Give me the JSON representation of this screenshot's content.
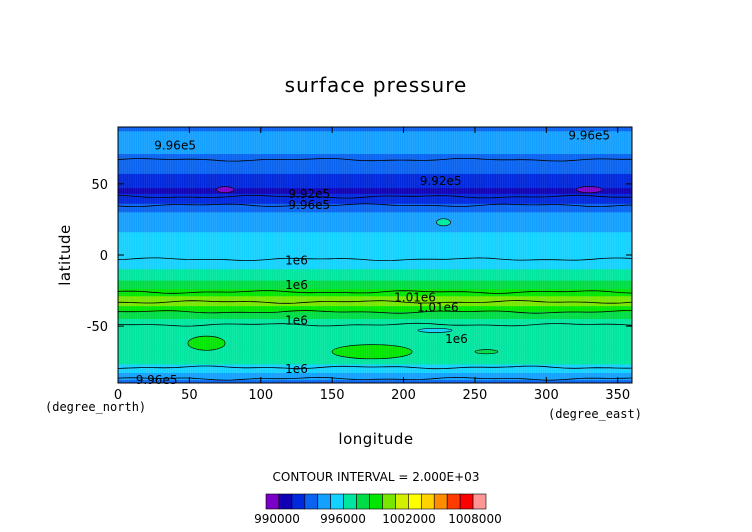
{
  "chart_data": {
    "type": "heatmap",
    "title": "surface pressure",
    "xlabel": "longitude",
    "ylabel": "latitude",
    "x_unit": "(degree_east)",
    "y_unit": "(degree_north)",
    "xlim": [
      0,
      360
    ],
    "ylim": [
      -90,
      90
    ],
    "x_ticks": [
      0,
      50,
      100,
      150,
      200,
      250,
      300,
      350
    ],
    "y_ticks": [
      50,
      0,
      -50
    ],
    "contour_interval_text": "CONTOUR INTERVAL = 2.000E+03",
    "colorbar": {
      "min": 989000,
      "max": 1009000,
      "interval": 2000,
      "tick_labels": [
        "990000",
        "996000",
        "1002000",
        "1008000"
      ],
      "colors": [
        "#7a00c8",
        "#1200b4",
        "#0028dc",
        "#0a64f0",
        "#14a0ff",
        "#14d2ff",
        "#00e6a0",
        "#00dc46",
        "#00e600",
        "#78e600",
        "#d2f000",
        "#ffff00",
        "#ffd200",
        "#ff8c00",
        "#ff3c00",
        "#ff0000",
        "#ff9696"
      ]
    },
    "bands_latitude_pressure": [
      {
        "lat": 90,
        "value": 996500
      },
      {
        "lat": 86,
        "value": 997200
      },
      {
        "lat": 78,
        "value": 997800
      },
      {
        "lat": 66,
        "value": 996400
      },
      {
        "lat": 58,
        "value": 995200
      },
      {
        "lat": 52,
        "value": 993800
      },
      {
        "lat": 45,
        "value": 992600
      },
      {
        "lat": 38,
        "value": 994200
      },
      {
        "lat": 34,
        "value": 996000
      },
      {
        "lat": 28,
        "value": 997600
      },
      {
        "lat": 18,
        "value": 998900
      },
      {
        "lat": 6,
        "value": 999600
      },
      {
        "lat": -2,
        "value": 1000000
      },
      {
        "lat": -10,
        "value": 1001000
      },
      {
        "lat": -17,
        "value": 1002500
      },
      {
        "lat": -22,
        "value": 1004300
      },
      {
        "lat": -26,
        "value": 1005800
      },
      {
        "lat": -30,
        "value": 1007200
      },
      {
        "lat": -32,
        "value": 1008200
      },
      {
        "lat": -36,
        "value": 1007100
      },
      {
        "lat": -40,
        "value": 1005100
      },
      {
        "lat": -45,
        "value": 1003100
      },
      {
        "lat": -50,
        "value": 1001800
      },
      {
        "lat": -56,
        "value": 1001000
      },
      {
        "lat": -62,
        "value": 1001500
      },
      {
        "lat": -70,
        "value": 1002900
      },
      {
        "lat": -77,
        "value": 1001100
      },
      {
        "lat": -82,
        "value": 999700
      },
      {
        "lat": -86,
        "value": 997800
      },
      {
        "lat": -90,
        "value": 996300
      }
    ],
    "features": [
      {
        "kind": "high",
        "lon": 62,
        "lat": -62,
        "value": 1005500,
        "rlon": 13,
        "rlat": 5
      },
      {
        "kind": "high",
        "lon": 178,
        "lat": -68,
        "value": 1005600,
        "rlon": 28,
        "rlat": 5
      },
      {
        "kind": "high",
        "lon": 258,
        "lat": -68,
        "value": 1004600,
        "rlon": 8,
        "rlat": 1.5
      },
      {
        "kind": "low",
        "lon": 75,
        "lat": 46,
        "value": 990800,
        "rlon": 6,
        "rlat": 2.2
      },
      {
        "kind": "low",
        "lon": 330,
        "lat": 46,
        "value": 990800,
        "rlon": 9,
        "rlat": 2.2
      },
      {
        "kind": "low",
        "lon": 228,
        "lat": 23,
        "value": 1001100,
        "rlon": 5,
        "rlat": 2.5
      },
      {
        "kind": "low",
        "lon": 222,
        "lat": -53,
        "value": 1000000,
        "rlon": 12,
        "rlat": 1.5
      }
    ],
    "contour_lines": [
      {
        "value": 996000,
        "lat": 67
      },
      {
        "value": 992000,
        "lat": 41
      },
      {
        "value": 996000,
        "lat": 35
      },
      {
        "value": 1000000,
        "lat": -3
      },
      {
        "value": 1006000,
        "lat": -26
      },
      {
        "value": 1010000,
        "lat": -33
      },
      {
        "value": 1006000,
        "lat": -40
      },
      {
        "value": 1000000,
        "lat": -49
      },
      {
        "value": 1000000,
        "lat": -79
      },
      {
        "value": 996000,
        "lat": -87
      }
    ],
    "contour_labels": [
      {
        "text": "9.96e5",
        "lon": 40,
        "lat": 77
      },
      {
        "text": "9.96e5",
        "lon": 330,
        "lat": 84
      },
      {
        "text": "9.92e5",
        "lon": 226,
        "lat": 52
      },
      {
        "text": "9.92e5",
        "lon": 134,
        "lat": 43
      },
      {
        "text": "9.96e5",
        "lon": 134,
        "lat": 35
      },
      {
        "text": "1e6",
        "lon": 125,
        "lat": -4
      },
      {
        "text": "1e6",
        "lon": 125,
        "lat": -21
      },
      {
        "text": "1.01e6",
        "lon": 208,
        "lat": -30
      },
      {
        "text": "1.01e6",
        "lon": 224,
        "lat": -37
      },
      {
        "text": "1e6",
        "lon": 125,
        "lat": -46
      },
      {
        "text": "1e6",
        "lon": 237,
        "lat": -59
      },
      {
        "text": "1e6",
        "lon": 125,
        "lat": -80
      },
      {
        "text": "9.96e5",
        "lon": 27,
        "lat": -88
      }
    ]
  }
}
